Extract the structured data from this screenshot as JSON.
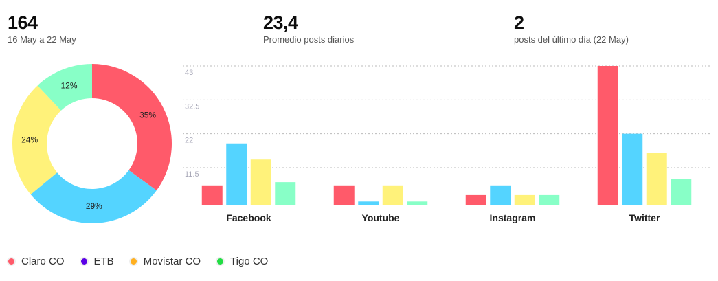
{
  "kpis": [
    {
      "value": "164",
      "label": "16 May a 22 May"
    },
    {
      "value": "23,4",
      "label": "Promedio posts diarios"
    },
    {
      "value": "2",
      "label": "posts del último día (22 May)"
    }
  ],
  "legend": [
    {
      "label": "Claro CO",
      "color": "#ff5a6a"
    },
    {
      "label": "ETB",
      "color": "#5a00e6"
    },
    {
      "label": "Movistar CO",
      "color": "#ffb020"
    },
    {
      "label": "Tigo CO",
      "color": "#22dd44"
    }
  ],
  "chart_data": [
    {
      "type": "pie",
      "donut": true,
      "labels": [
        "Claro CO",
        "ETB",
        "Movistar CO",
        "Tigo CO"
      ],
      "values": [
        35,
        29,
        24,
        12
      ],
      "value_labels": [
        "35%",
        "29%",
        "24%",
        "12%"
      ],
      "colors": [
        "#ff5a6a",
        "#54d4ff",
        "#fff27a",
        "#88ffc7"
      ]
    },
    {
      "type": "bar",
      "categories": [
        "Facebook",
        "Youtube",
        "Instagram",
        "Twitter"
      ],
      "series": [
        {
          "values": [
            6,
            6,
            3,
            43
          ],
          "color": "#ff5a6a"
        },
        {
          "values": [
            19,
            1,
            6,
            22
          ],
          "color": "#54d4ff"
        },
        {
          "values": [
            14,
            6,
            3,
            16
          ],
          "color": "#fff27a"
        },
        {
          "values": [
            7,
            1,
            3,
            8
          ],
          "color": "#88ffc7"
        }
      ],
      "yticks": [
        11.5,
        22,
        32.5,
        43
      ],
      "ytick_labels": [
        "11.5",
        "22",
        "32.5",
        "43"
      ],
      "ylim": [
        0,
        43
      ],
      "grid": true
    }
  ]
}
